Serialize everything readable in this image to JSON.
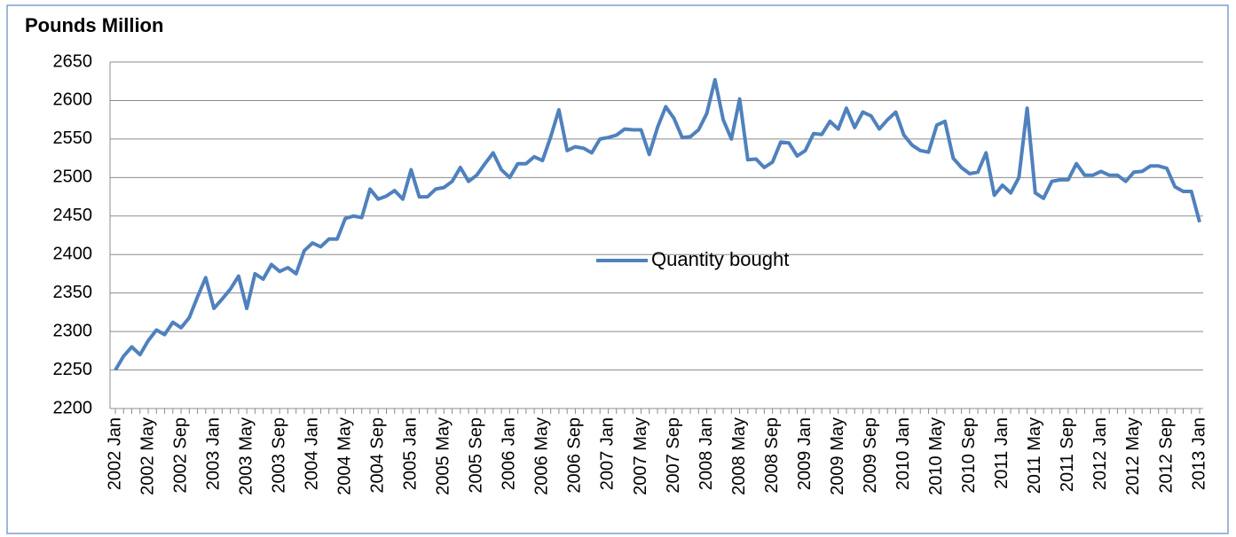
{
  "chart_data": {
    "type": "line",
    "title": "Pounds Million",
    "categories": [
      "2002 Jan",
      null,
      null,
      null,
      "2002 May",
      null,
      null,
      null,
      "2002 Sep",
      null,
      null,
      null,
      "2003 Jan",
      null,
      null,
      null,
      "2003 May",
      null,
      null,
      null,
      "2003 Sep",
      null,
      null,
      null,
      "2004 Jan",
      null,
      null,
      null,
      "2004 May",
      null,
      null,
      null,
      "2004 Sep",
      null,
      null,
      null,
      "2005 Jan",
      null,
      null,
      null,
      "2005 May",
      null,
      null,
      null,
      "2005 Sep",
      null,
      null,
      null,
      "2006 Jan",
      null,
      null,
      null,
      "2006 May",
      null,
      null,
      null,
      "2006 Sep",
      null,
      null,
      null,
      "2007 Jan",
      null,
      null,
      null,
      "2007 May",
      null,
      null,
      null,
      "2007 Sep",
      null,
      null,
      null,
      "2008 Jan",
      null,
      null,
      null,
      "2008 May",
      null,
      null,
      null,
      "2008 Sep",
      null,
      null,
      null,
      "2009 Jan",
      null,
      null,
      null,
      "2009 May",
      null,
      null,
      null,
      "2009 Sep",
      null,
      null,
      null,
      "2010 Jan",
      null,
      null,
      null,
      "2010 May",
      null,
      null,
      null,
      "2010 Sep",
      null,
      null,
      null,
      "2011 Jan",
      null,
      null,
      null,
      "2011 May",
      null,
      null,
      null,
      "2011 Sep",
      null,
      null,
      null,
      "2012 Jan",
      null,
      null,
      null,
      "2012 May",
      null,
      null,
      null,
      "2012 Sep",
      null,
      null,
      null,
      "2013 Jan"
    ],
    "series": [
      {
        "name": "Quantity bought",
        "color": "#4f81bd",
        "values": [
          2250,
          2268,
          2280,
          2270,
          2288,
          2302,
          2296,
          2312,
          2305,
          2318,
          2345,
          2370,
          2330,
          2342,
          2355,
          2372,
          2330,
          2375,
          2368,
          2387,
          2378,
          2383,
          2375,
          2405,
          2415,
          2410,
          2420,
          2420,
          2447,
          2450,
          2448,
          2485,
          2472,
          2476,
          2483,
          2472,
          2510,
          2475,
          2475,
          2485,
          2487,
          2495,
          2513,
          2495,
          2503,
          2518,
          2532,
          2510,
          2500,
          2518,
          2518,
          2527,
          2522,
          2553,
          2588,
          2535,
          2540,
          2538,
          2532,
          2550,
          2552,
          2555,
          2563,
          2562,
          2562,
          2530,
          2565,
          2592,
          2577,
          2552,
          2553,
          2562,
          2583,
          2627,
          2575,
          2550,
          2602,
          2523,
          2524,
          2513,
          2520,
          2546,
          2545,
          2528,
          2535,
          2557,
          2556,
          2573,
          2563,
          2590,
          2565,
          2585,
          2580,
          2563,
          2575,
          2585,
          2555,
          2542,
          2535,
          2533,
          2568,
          2573,
          2525,
          2513,
          2505,
          2507,
          2532,
          2477,
          2490,
          2480,
          2500,
          2590,
          2480,
          2473,
          2495,
          2497,
          2497,
          2518,
          2503,
          2503,
          2508,
          2503,
          2503,
          2495,
          2507,
          2508,
          2515,
          2515,
          2512,
          2488,
          2482,
          2482,
          2442
        ]
      }
    ],
    "ylim": [
      2200,
      2650
    ],
    "yticks": [
      2200,
      2250,
      2300,
      2350,
      2400,
      2450,
      2500,
      2550,
      2600,
      2650
    ],
    "grid": true,
    "legend": "center"
  }
}
